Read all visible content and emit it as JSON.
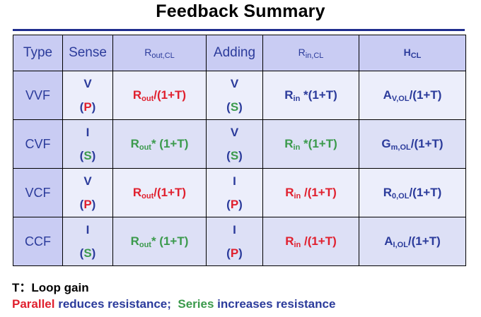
{
  "title": "Feedback Summary",
  "headers": {
    "type": "Type",
    "sense": "Sense",
    "rout_main": "R",
    "rout_sub": "out,CL",
    "adding": "Adding",
    "rin_main": "R",
    "rin_sub": "in,CL",
    "h_main": "H",
    "h_sub": "CL"
  },
  "rows": [
    {
      "type": "VVF",
      "sense_top": "V",
      "sense_open": "(",
      "sense_letter": "P",
      "sense_close": ")",
      "rout_main": "R",
      "rout_sub": "out",
      "rout_tail": "/(1+T)",
      "adding_top": "V",
      "adding_open": "(",
      "adding_letter": "S",
      "adding_close": ")",
      "rin_main": "R",
      "rin_sub": "in",
      "rin_tail": " *(1+T)",
      "h_main": "A",
      "h_sub": "V,OL",
      "h_tail": "/(1+T)"
    },
    {
      "type": "CVF",
      "sense_top": "I",
      "sense_open": "(",
      "sense_letter": "S",
      "sense_close": ")",
      "rout_main": "R",
      "rout_sub": "out",
      "rout_tail": "* (1+T)",
      "adding_top": "V",
      "adding_open": "(",
      "adding_letter": "S",
      "adding_close": ")",
      "rin_main": "R",
      "rin_sub": "in",
      "rin_tail": " *(1+T)",
      "h_main": "G",
      "h_sub": "m,OL",
      "h_tail": "/(1+T)"
    },
    {
      "type": "VCF",
      "sense_top": "V",
      "sense_open": "(",
      "sense_letter": "P",
      "sense_close": ")",
      "rout_main": "R",
      "rout_sub": "out",
      "rout_tail": "/(1+T)",
      "adding_top": "I",
      "adding_open": "(",
      "adding_letter": "P",
      "adding_close": ")",
      "rin_main": "R",
      "rin_sub": "in",
      "rin_tail": " /(1+T)",
      "h_main": "R",
      "h_sub": "0,OL",
      "h_tail": "/(1+T)"
    },
    {
      "type": "CCF",
      "sense_top": "I",
      "sense_open": "(",
      "sense_letter": "S",
      "sense_close": ")",
      "rout_main": "R",
      "rout_sub": "out",
      "rout_tail": "* (1+T)",
      "adding_top": "I",
      "adding_open": "(",
      "adding_letter": "P",
      "adding_close": ")",
      "rin_main": "R",
      "rin_sub": "in",
      "rin_tail": " /(1+T)",
      "h_main": "A",
      "h_sub": "I,OL",
      "h_tail": "/(1+T)"
    }
  ],
  "notes": {
    "line1": "T：Loop gain",
    "parallel": "Parallel",
    "reduces": " reduces resistance;  ",
    "series": "Series",
    "increases": " increases resistance"
  },
  "colors": {
    "parallel": "#e0202e",
    "series": "#3b9a4c",
    "text_blue": "#2b3b9b",
    "header_bg": "#c9ccf3"
  }
}
